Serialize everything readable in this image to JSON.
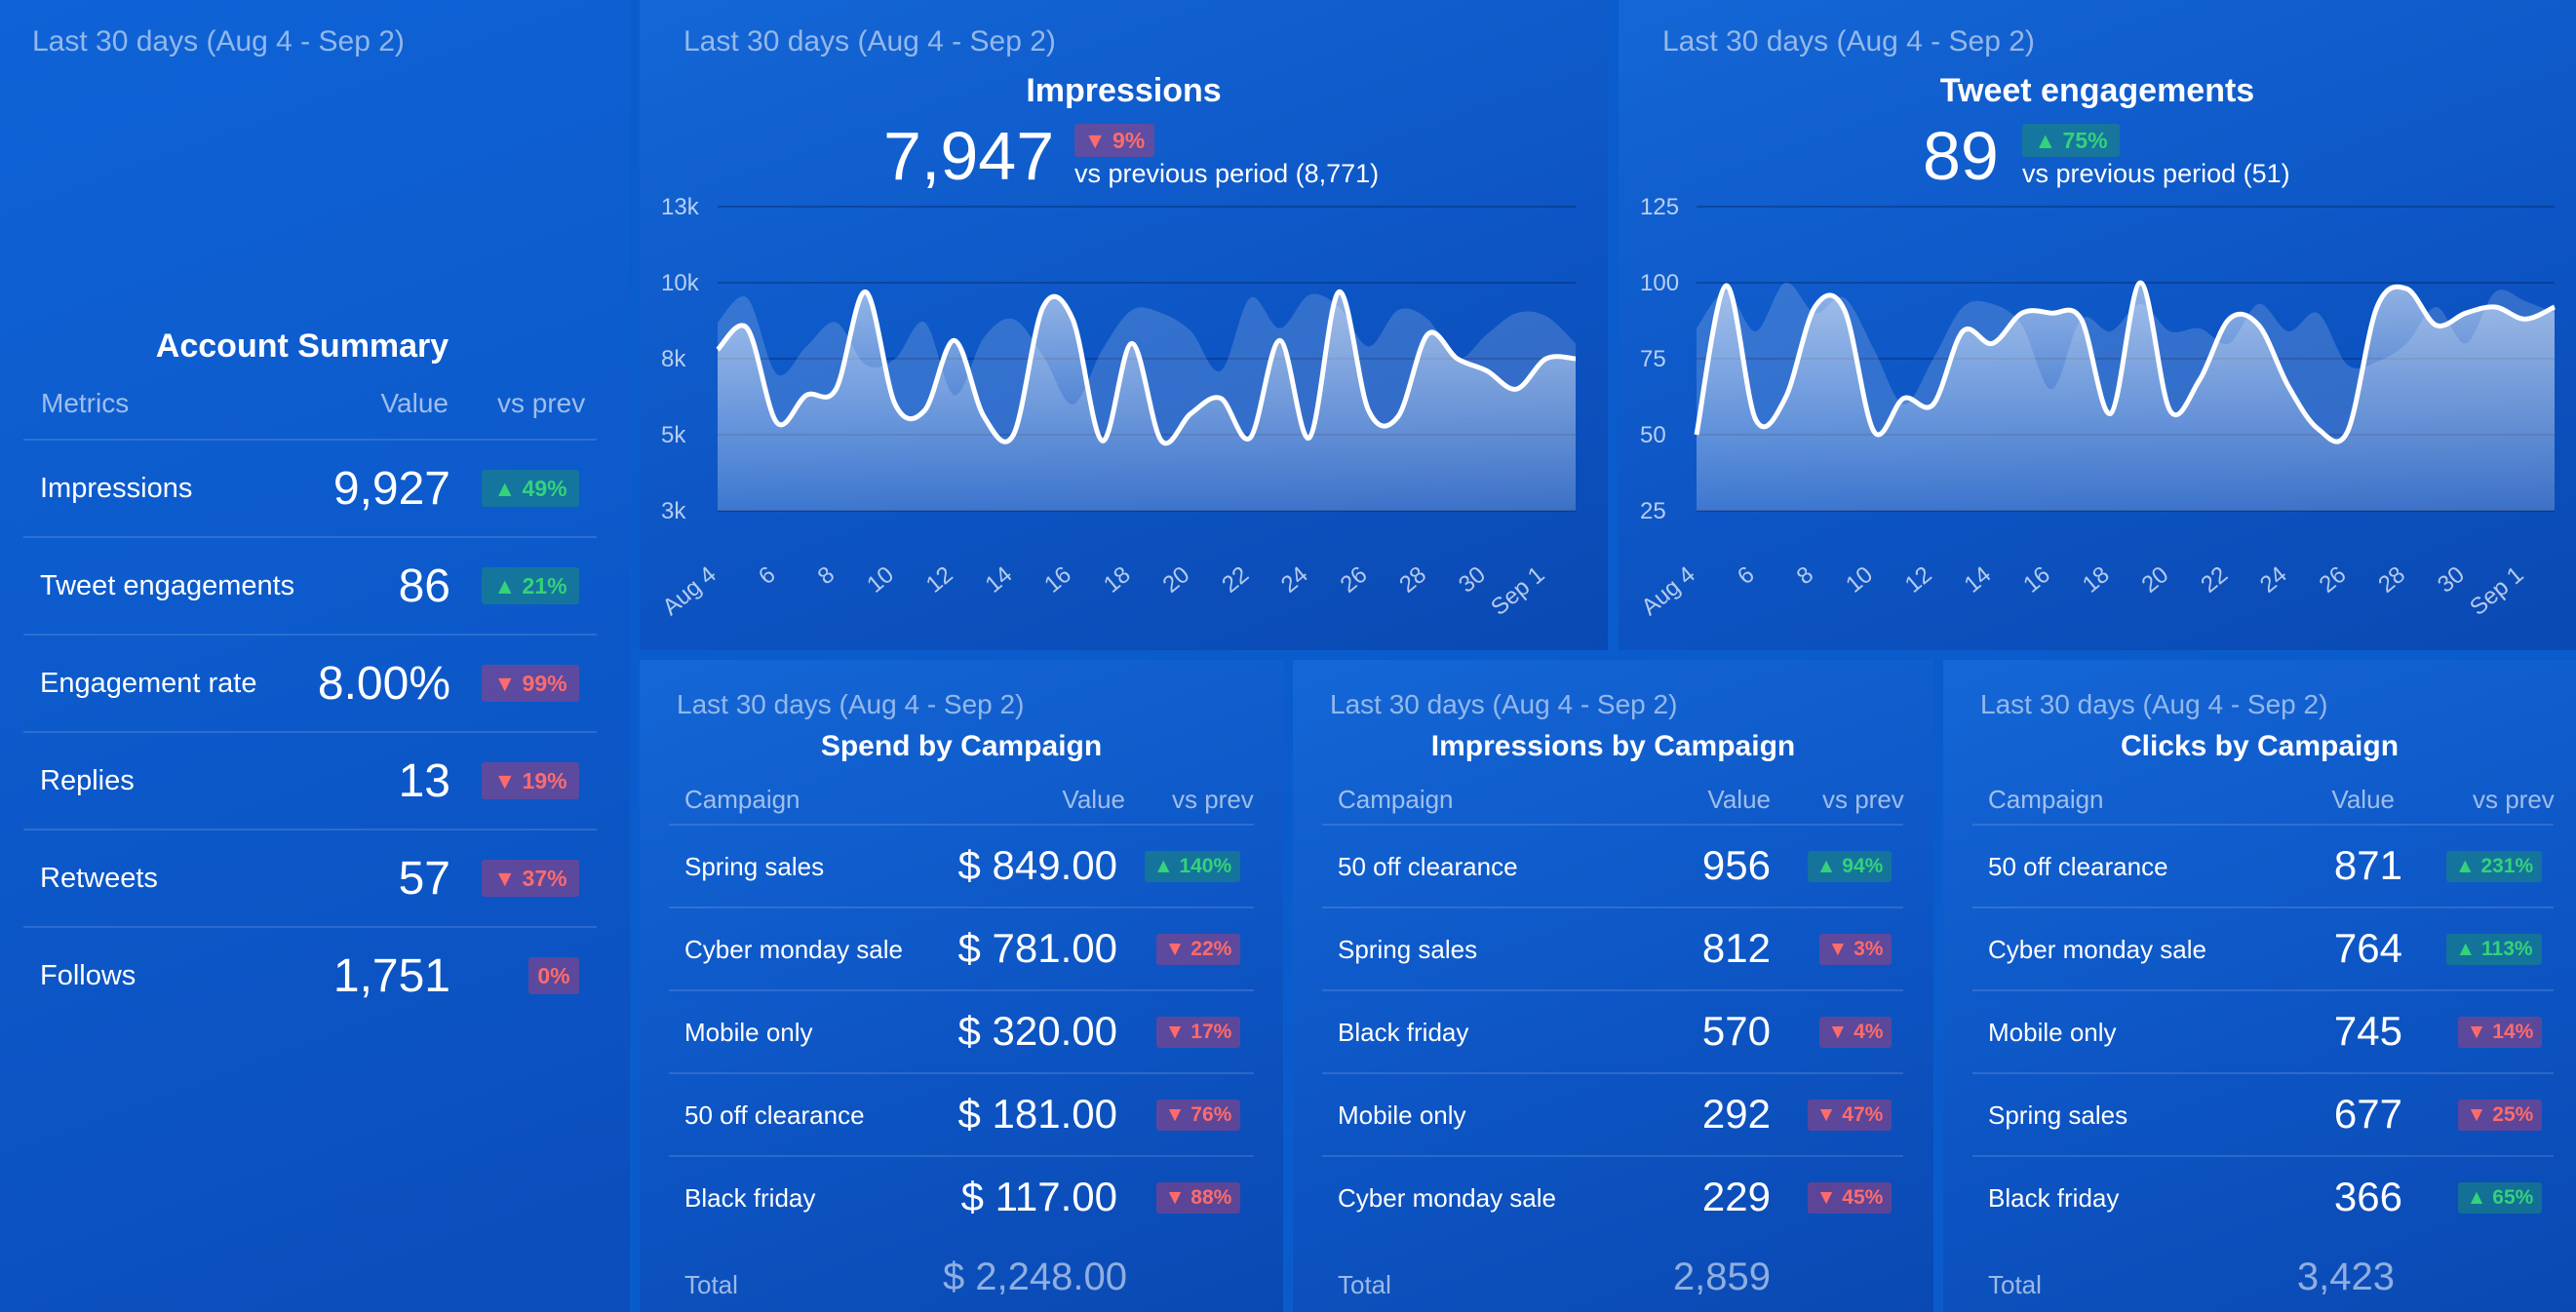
{
  "colors": {
    "accent_up": "#34d27a",
    "accent_down": "#ff6b6b",
    "background": "#0a5ccc"
  },
  "summary": {
    "range": "Last 30 days (Aug 4 - Sep 2)",
    "title": "Account Summary",
    "headers": {
      "metric": "Metrics",
      "value": "Value",
      "vs": "vs prev"
    },
    "rows": [
      {
        "label": "Impressions",
        "value": "9,927",
        "change": "▲ 49%",
        "dir": "up"
      },
      {
        "label": "Tweet engagements",
        "value": "86",
        "change": "▲ 21%",
        "dir": "up"
      },
      {
        "label": "Engagement rate",
        "value": "8.00%",
        "change": "▼ 99%",
        "dir": "down"
      },
      {
        "label": "Replies",
        "value": "13",
        "change": "▼ 19%",
        "dir": "down"
      },
      {
        "label": "Retweets",
        "value": "57",
        "change": "▼ 37%",
        "dir": "down"
      },
      {
        "label": "Follows",
        "value": "1,751",
        "change": "0%",
        "dir": "down"
      }
    ]
  },
  "impressions": {
    "range": "Last 30 days (Aug 4 - Sep 2)",
    "title": "Impressions",
    "value": "7,947",
    "change": "▼ 9%",
    "vs": "vs previous period (8,771)"
  },
  "engagements": {
    "range": "Last 30 days (Aug 4 - Sep 2)",
    "title": "Tweet engagements",
    "value": "89",
    "change": "▲ 75%",
    "vs": "vs previous period (51)"
  },
  "chart_data": [
    {
      "type": "area",
      "title": "Impressions",
      "x": [
        "Aug 4",
        "5",
        "6",
        "7",
        "8",
        "9",
        "10",
        "11",
        "12",
        "13",
        "14",
        "15",
        "16",
        "17",
        "18",
        "19",
        "20",
        "21",
        "22",
        "23",
        "24",
        "25",
        "26",
        "27",
        "28",
        "29",
        "30",
        "31",
        "Sep 1",
        "2"
      ],
      "x_tick_labels": [
        "Aug 4",
        "6",
        "8",
        "10",
        "12",
        "14",
        "16",
        "18",
        "20",
        "22",
        "24",
        "26",
        "28",
        "30",
        "Sep 1"
      ],
      "y_ticks": [
        "3k",
        "5k",
        "8k",
        "10k",
        "13k"
      ],
      "ylim": [
        3000,
        13000
      ],
      "series": [
        {
          "name": "Current period",
          "values": [
            8300,
            9000,
            5900,
            6800,
            7000,
            10200,
            6500,
            6300,
            8600,
            6100,
            5500,
            9700,
            9300,
            5300,
            8500,
            5300,
            6200,
            6700,
            5400,
            8600,
            5400,
            10200,
            6300,
            6100,
            8800,
            8000,
            7600,
            7000,
            8000,
            8000
          ]
        },
        {
          "name": "Previous period",
          "values": [
            9200,
            10000,
            7500,
            8400,
            9200,
            7800,
            8000,
            9200,
            6800,
            8700,
            9300,
            8100,
            6500,
            8300,
            9600,
            9500,
            8900,
            7600,
            10000,
            9000,
            10100,
            9700,
            8400,
            9600,
            9300,
            8000,
            8800,
            9500,
            9400,
            8500
          ]
        }
      ]
    },
    {
      "type": "area",
      "title": "Tweet engagements",
      "x": [
        "Aug 4",
        "5",
        "6",
        "7",
        "8",
        "9",
        "10",
        "11",
        "12",
        "13",
        "14",
        "15",
        "16",
        "17",
        "18",
        "19",
        "20",
        "21",
        "22",
        "23",
        "24",
        "25",
        "26",
        "27",
        "28",
        "29",
        "30",
        "31",
        "Sep 1",
        "2"
      ],
      "x_tick_labels": [
        "Aug 4",
        "6",
        "8",
        "10",
        "12",
        "14",
        "16",
        "18",
        "20",
        "22",
        "24",
        "26",
        "28",
        "30",
        "Sep 1"
      ],
      "y_ticks": [
        "25",
        "50",
        "75",
        "100",
        "125"
      ],
      "ylim": [
        25,
        125
      ],
      "series": [
        {
          "name": "Current period",
          "values": [
            50,
            99,
            55,
            62,
            92,
            91,
            51,
            62,
            60,
            84,
            80,
            90,
            90,
            88,
            57,
            100,
            58,
            68,
            88,
            86,
            66,
            52,
            51,
            92,
            98,
            86,
            90,
            92,
            88,
            92
          ]
        },
        {
          "name": "Previous period",
          "values": [
            85,
            97,
            84,
            100,
            90,
            95,
            78,
            60,
            75,
            92,
            93,
            86,
            65,
            88,
            84,
            93,
            84,
            85,
            80,
            93,
            84,
            90,
            73,
            74,
            80,
            92,
            80,
            97,
            94,
            90
          ]
        }
      ]
    }
  ],
  "spend": {
    "range": "Last 30 days (Aug 4 - Sep 2)",
    "title": "Spend by Campaign",
    "headers": {
      "name": "Campaign",
      "value": "Value",
      "vs": "vs prev"
    },
    "rows": [
      {
        "name": "Spring sales",
        "value": "$ 849.00",
        "change": "▲ 140%",
        "dir": "up"
      },
      {
        "name": "Cyber monday sale",
        "value": "$ 781.00",
        "change": "▼ 22%",
        "dir": "down"
      },
      {
        "name": "Mobile only",
        "value": "$ 320.00",
        "change": "▼ 17%",
        "dir": "down"
      },
      {
        "name": "50 off clearance",
        "value": "$ 181.00",
        "change": "▼ 76%",
        "dir": "down"
      },
      {
        "name": "Black friday",
        "value": "$ 117.00",
        "change": "▼ 88%",
        "dir": "down"
      }
    ],
    "total_label": "Total",
    "total_value": "$ 2,248.00"
  },
  "impressions_campaign": {
    "range": "Last 30 days (Aug 4 - Sep 2)",
    "title": "Impressions by Campaign",
    "headers": {
      "name": "Campaign",
      "value": "Value",
      "vs": "vs prev"
    },
    "rows": [
      {
        "name": "50 off clearance",
        "value": "956",
        "change": "▲ 94%",
        "dir": "up"
      },
      {
        "name": "Spring sales",
        "value": "812",
        "change": "▼ 3%",
        "dir": "down"
      },
      {
        "name": "Black friday",
        "value": "570",
        "change": "▼ 4%",
        "dir": "down"
      },
      {
        "name": "Mobile only",
        "value": "292",
        "change": "▼ 47%",
        "dir": "down"
      },
      {
        "name": "Cyber monday sale",
        "value": "229",
        "change": "▼ 45%",
        "dir": "down"
      }
    ],
    "total_label": "Total",
    "total_value": "2,859"
  },
  "clicks": {
    "range": "Last 30 days (Aug 4 - Sep 2)",
    "title": "Clicks by Campaign",
    "headers": {
      "name": "Campaign",
      "value": "Value",
      "vs": "vs prev"
    },
    "rows": [
      {
        "name": "50 off clearance",
        "value": "871",
        "change": "▲ 231%",
        "dir": "up"
      },
      {
        "name": "Cyber monday sale",
        "value": "764",
        "change": "▲ 113%",
        "dir": "up"
      },
      {
        "name": "Mobile only",
        "value": "745",
        "change": "▼ 14%",
        "dir": "down"
      },
      {
        "name": "Spring sales",
        "value": "677",
        "change": "▼ 25%",
        "dir": "down"
      },
      {
        "name": "Black friday",
        "value": "366",
        "change": "▲ 65%",
        "dir": "up"
      }
    ],
    "total_label": "Total",
    "total_value": "3,423"
  }
}
